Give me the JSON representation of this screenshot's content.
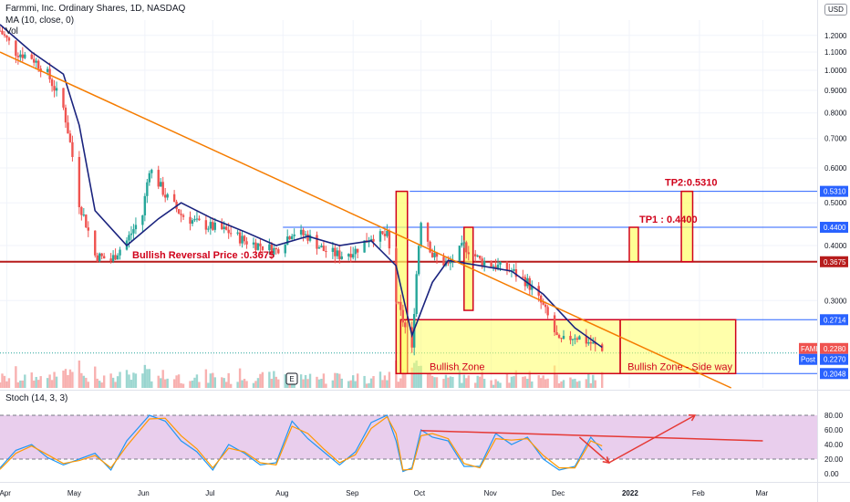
{
  "header": {
    "symbol_title": "Farmmi, Inc. Ordinary Shares, 1D, NASDAQ",
    "ma_label": "MA (10, close, 0)",
    "vol_label": "Vol",
    "currency": "USD"
  },
  "chart_data": [
    {
      "type": "candlestick",
      "title": "Farmmi, Inc. Ordinary Shares, 1D, NASDAQ",
      "symbol": "FAMI",
      "ylim": [
        0.19,
        1.3
      ],
      "y_ticks": [
        "1.2000",
        "1.1000",
        "1.0000",
        "0.9000",
        "0.8000",
        "0.7000",
        "0.6000",
        "0.5000",
        "0.4000",
        "0.3000"
      ],
      "x_ticks": [
        "Apr",
        "May",
        "Jun",
        "Jul",
        "Aug",
        "Sep",
        "Oct",
        "Nov",
        "Dec",
        "2022",
        "Feb",
        "Mar"
      ],
      "close_path": [
        {
          "t": "2021-03-29",
          "v": 1.23
        },
        {
          "t": "2021-04-05",
          "v": 1.1
        },
        {
          "t": "2021-04-12",
          "v": 1.07
        },
        {
          "t": "2021-04-19",
          "v": 0.98
        },
        {
          "t": "2021-04-26",
          "v": 0.82
        },
        {
          "t": "2021-05-03",
          "v": 0.5
        },
        {
          "t": "2021-05-10",
          "v": 0.38
        },
        {
          "t": "2021-05-17",
          "v": 0.37
        },
        {
          "t": "2021-05-24",
          "v": 0.41
        },
        {
          "t": "2021-05-31",
          "v": 0.47
        },
        {
          "t": "2021-06-03",
          "v": 0.6
        },
        {
          "t": "2021-06-10",
          "v": 0.52
        },
        {
          "t": "2021-06-17",
          "v": 0.47
        },
        {
          "t": "2021-06-24",
          "v": 0.45
        },
        {
          "t": "2021-07-01",
          "v": 0.44
        },
        {
          "t": "2021-07-08",
          "v": 0.43
        },
        {
          "t": "2021-07-15",
          "v": 0.41
        },
        {
          "t": "2021-07-22",
          "v": 0.4
        },
        {
          "t": "2021-07-29",
          "v": 0.39
        },
        {
          "t": "2021-08-05",
          "v": 0.43
        },
        {
          "t": "2021-08-12",
          "v": 0.42
        },
        {
          "t": "2021-08-19",
          "v": 0.39
        },
        {
          "t": "2021-08-26",
          "v": 0.38
        },
        {
          "t": "2021-09-02",
          "v": 0.39
        },
        {
          "t": "2021-09-09",
          "v": 0.42
        },
        {
          "t": "2021-09-16",
          "v": 0.42
        },
        {
          "t": "2021-09-20",
          "v": 0.3
        },
        {
          "t": "2021-09-27",
          "v": 0.23
        },
        {
          "t": "2021-10-01",
          "v": 0.46
        },
        {
          "t": "2021-10-06",
          "v": 0.38
        },
        {
          "t": "2021-10-13",
          "v": 0.36
        },
        {
          "t": "2021-10-20",
          "v": 0.4
        },
        {
          "t": "2021-10-27",
          "v": 0.37
        },
        {
          "t": "2021-11-03",
          "v": 0.36
        },
        {
          "t": "2021-11-10",
          "v": 0.35
        },
        {
          "t": "2021-11-17",
          "v": 0.33
        },
        {
          "t": "2021-11-24",
          "v": 0.29
        },
        {
          "t": "2021-12-01",
          "v": 0.24
        },
        {
          "t": "2021-12-08",
          "v": 0.25
        },
        {
          "t": "2021-12-15",
          "v": 0.24
        },
        {
          "t": "2021-12-20",
          "v": 0.23
        }
      ],
      "ma10_path": [
        {
          "t": "2021-03-29",
          "v": 1.27
        },
        {
          "t": "2021-04-12",
          "v": 1.1
        },
        {
          "t": "2021-04-26",
          "v": 0.98
        },
        {
          "t": "2021-05-03",
          "v": 0.75
        },
        {
          "t": "2021-05-10",
          "v": 0.48
        },
        {
          "t": "2021-05-24",
          "v": 0.4
        },
        {
          "t": "2021-06-07",
          "v": 0.46
        },
        {
          "t": "2021-06-17",
          "v": 0.5
        },
        {
          "t": "2021-07-01",
          "v": 0.46
        },
        {
          "t": "2021-07-15",
          "v": 0.43
        },
        {
          "t": "2021-07-29",
          "v": 0.4
        },
        {
          "t": "2021-08-12",
          "v": 0.42
        },
        {
          "t": "2021-08-26",
          "v": 0.4
        },
        {
          "t": "2021-09-09",
          "v": 0.41
        },
        {
          "t": "2021-09-20",
          "v": 0.36
        },
        {
          "t": "2021-09-27",
          "v": 0.25
        },
        {
          "t": "2021-10-06",
          "v": 0.33
        },
        {
          "t": "2021-10-13",
          "v": 0.37
        },
        {
          "t": "2021-10-27",
          "v": 0.36
        },
        {
          "t": "2021-11-10",
          "v": 0.35
        },
        {
          "t": "2021-11-24",
          "v": 0.31
        },
        {
          "t": "2021-12-08",
          "v": 0.26
        },
        {
          "t": "2021-12-20",
          "v": 0.235
        }
      ],
      "horizontal_levels": [
        {
          "value": 0.531,
          "label": "0.5310",
          "color": "#2962ff"
        },
        {
          "value": 0.44,
          "label": "0.4400",
          "color": "#2962ff"
        },
        {
          "value": 0.3675,
          "label": "0.3675",
          "color": "#b71c1c"
        },
        {
          "value": 0.2714,
          "label": "0.2714",
          "color": "#2962ff"
        },
        {
          "value": 0.2048,
          "label": "0.2048",
          "color": "#2962ff"
        }
      ],
      "price_tags": [
        {
          "name": "FAMI",
          "value": "0.2280",
          "color": "#ef5350"
        },
        {
          "name": "Post",
          "value": "0.2270",
          "color": "#2962ff"
        }
      ],
      "trendline": {
        "from": {
          "t": "2021-03-29",
          "v": 1.1
        },
        "to": {
          "t": "2022-02-15",
          "v": 0.19
        },
        "color": "#f57c00"
      },
      "annotations": {
        "reversal_text": "Bullish Reversal Price :0.3675",
        "tp1_text": "TP1 : 0.4400",
        "tp2_text": "TP2:0.5310",
        "zone_text": "Bullish Zone",
        "zone_side_text": "Bullish Zone - Side way",
        "earnings_marker": "E"
      },
      "colors": {
        "up": "#26a69a",
        "down": "#ef5350",
        "ma": "#1a237e",
        "zone_fill": "#ffff66",
        "annotation": "#d0021b"
      }
    },
    {
      "type": "line",
      "title": "Stoch (14, 3, 3)",
      "ylim": [
        0,
        100
      ],
      "y_ticks": [
        "80.00",
        "60.00",
        "40.00",
        "20.00",
        "0.00"
      ],
      "bands": [
        20,
        80
      ],
      "series": [
        {
          "color": "#2196f3",
          "points": [
            {
              "t": "2021-03-29",
              "v": 8
            },
            {
              "t": "2021-04-05",
              "v": 32
            },
            {
              "t": "2021-04-12",
              "v": 40
            },
            {
              "t": "2021-04-19",
              "v": 22
            },
            {
              "t": "2021-04-26",
              "v": 12
            },
            {
              "t": "2021-05-03",
              "v": 20
            },
            {
              "t": "2021-05-10",
              "v": 28
            },
            {
              "t": "2021-05-17",
              "v": 5
            },
            {
              "t": "2021-05-24",
              "v": 45
            },
            {
              "t": "2021-06-03",
              "v": 80
            },
            {
              "t": "2021-06-10",
              "v": 72
            },
            {
              "t": "2021-06-17",
              "v": 45
            },
            {
              "t": "2021-06-24",
              "v": 30
            },
            {
              "t": "2021-07-01",
              "v": 5
            },
            {
              "t": "2021-07-08",
              "v": 40
            },
            {
              "t": "2021-07-15",
              "v": 28
            },
            {
              "t": "2021-07-22",
              "v": 12
            },
            {
              "t": "2021-07-29",
              "v": 15
            },
            {
              "t": "2021-08-05",
              "v": 72
            },
            {
              "t": "2021-08-12",
              "v": 48
            },
            {
              "t": "2021-08-19",
              "v": 30
            },
            {
              "t": "2021-08-26",
              "v": 12
            },
            {
              "t": "2021-09-02",
              "v": 30
            },
            {
              "t": "2021-09-09",
              "v": 70
            },
            {
              "t": "2021-09-16",
              "v": 80
            },
            {
              "t": "2021-09-20",
              "v": 45
            },
            {
              "t": "2021-09-23",
              "v": 3
            },
            {
              "t": "2021-09-27",
              "v": 8
            },
            {
              "t": "2021-10-01",
              "v": 60
            },
            {
              "t": "2021-10-06",
              "v": 50
            },
            {
              "t": "2021-10-13",
              "v": 45
            },
            {
              "t": "2021-10-20",
              "v": 10
            },
            {
              "t": "2021-10-27",
              "v": 10
            },
            {
              "t": "2021-11-03",
              "v": 55
            },
            {
              "t": "2021-11-10",
              "v": 40
            },
            {
              "t": "2021-11-17",
              "v": 50
            },
            {
              "t": "2021-11-24",
              "v": 20
            },
            {
              "t": "2021-12-01",
              "v": 5
            },
            {
              "t": "2021-12-08",
              "v": 10
            },
            {
              "t": "2021-12-15",
              "v": 50
            },
            {
              "t": "2021-12-20",
              "v": 32
            }
          ]
        },
        {
          "color": "#ff9800",
          "points": [
            {
              "t": "2021-03-29",
              "v": 6
            },
            {
              "t": "2021-04-05",
              "v": 28
            },
            {
              "t": "2021-04-12",
              "v": 38
            },
            {
              "t": "2021-04-19",
              "v": 26
            },
            {
              "t": "2021-04-26",
              "v": 14
            },
            {
              "t": "2021-05-03",
              "v": 18
            },
            {
              "t": "2021-05-10",
              "v": 25
            },
            {
              "t": "2021-05-17",
              "v": 8
            },
            {
              "t": "2021-05-24",
              "v": 38
            },
            {
              "t": "2021-06-03",
              "v": 75
            },
            {
              "t": "2021-06-10",
              "v": 76
            },
            {
              "t": "2021-06-17",
              "v": 52
            },
            {
              "t": "2021-06-24",
              "v": 34
            },
            {
              "t": "2021-07-01",
              "v": 8
            },
            {
              "t": "2021-07-08",
              "v": 35
            },
            {
              "t": "2021-07-15",
              "v": 30
            },
            {
              "t": "2021-07-22",
              "v": 15
            },
            {
              "t": "2021-07-29",
              "v": 12
            },
            {
              "t": "2021-08-05",
              "v": 65
            },
            {
              "t": "2021-08-12",
              "v": 55
            },
            {
              "t": "2021-08-19",
              "v": 34
            },
            {
              "t": "2021-08-26",
              "v": 15
            },
            {
              "t": "2021-09-02",
              "v": 26
            },
            {
              "t": "2021-09-09",
              "v": 62
            },
            {
              "t": "2021-09-16",
              "v": 78
            },
            {
              "t": "2021-09-20",
              "v": 55
            },
            {
              "t": "2021-09-23",
              "v": 5
            },
            {
              "t": "2021-09-27",
              "v": 6
            },
            {
              "t": "2021-10-01",
              "v": 52
            },
            {
              "t": "2021-10-06",
              "v": 55
            },
            {
              "t": "2021-10-13",
              "v": 48
            },
            {
              "t": "2021-10-20",
              "v": 14
            },
            {
              "t": "2021-10-27",
              "v": 8
            },
            {
              "t": "2021-11-03",
              "v": 48
            },
            {
              "t": "2021-11-10",
              "v": 46
            },
            {
              "t": "2021-11-17",
              "v": 48
            },
            {
              "t": "2021-11-24",
              "v": 25
            },
            {
              "t": "2021-12-01",
              "v": 8
            },
            {
              "t": "2021-12-08",
              "v": 8
            },
            {
              "t": "2021-12-15",
              "v": 45
            },
            {
              "t": "2021-12-20",
              "v": 38
            }
          ]
        }
      ],
      "resistance_line": {
        "from": {
          "t": "2021-10-01",
          "v": 59
        },
        "to": {
          "t": "2022-03-01",
          "v": 45
        },
        "color": "#e53935"
      },
      "projection": [
        {
          "t": "2021-12-10",
          "v": 50
        },
        {
          "t": "2021-12-23",
          "v": 15
        },
        {
          "t": "2022-01-30",
          "v": 80
        }
      ],
      "fill": "#e1bee7"
    }
  ]
}
